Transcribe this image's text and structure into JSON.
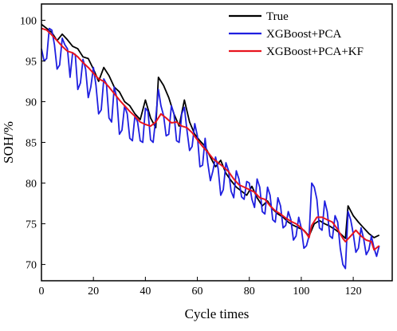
{
  "chart_data": {
    "type": "line",
    "title": "",
    "xlabel": "Cycle times",
    "ylabel": "SOH/%",
    "xlim": [
      0,
      135
    ],
    "ylim": [
      68,
      102
    ],
    "xticks": [
      0,
      20,
      40,
      60,
      80,
      100,
      120
    ],
    "yticks": [
      70,
      75,
      80,
      85,
      90,
      95,
      100
    ],
    "grid": false,
    "legend_position": "top-right",
    "series": [
      {
        "name": "True",
        "color": "#000000",
        "points": [
          [
            0,
            99.5
          ],
          [
            2,
            99.0
          ],
          [
            4,
            98.5
          ],
          [
            6,
            97.5
          ],
          [
            8,
            98.3
          ],
          [
            10,
            97.6
          ],
          [
            12,
            96.8
          ],
          [
            14,
            96.5
          ],
          [
            16,
            95.5
          ],
          [
            18,
            95.3
          ],
          [
            20,
            94.0
          ],
          [
            22,
            92.5
          ],
          [
            24,
            94.2
          ],
          [
            26,
            93.2
          ],
          [
            28,
            91.8
          ],
          [
            30,
            91.2
          ],
          [
            32,
            90.0
          ],
          [
            34,
            89.5
          ],
          [
            36,
            88.5
          ],
          [
            38,
            87.8
          ],
          [
            40,
            90.2
          ],
          [
            42,
            88.0
          ],
          [
            44,
            86.8
          ],
          [
            45,
            93.0
          ],
          [
            47,
            92.0
          ],
          [
            49,
            90.5
          ],
          [
            51,
            88.5
          ],
          [
            53,
            87.0
          ],
          [
            55,
            90.2
          ],
          [
            57,
            87.5
          ],
          [
            59,
            86.0
          ],
          [
            61,
            85.2
          ],
          [
            63,
            84.5
          ],
          [
            65,
            83.2
          ],
          [
            67,
            82.0
          ],
          [
            69,
            82.8
          ],
          [
            71,
            81.2
          ],
          [
            73,
            80.3
          ],
          [
            75,
            79.5
          ],
          [
            77,
            79.0
          ],
          [
            79,
            78.5
          ],
          [
            81,
            79.6
          ],
          [
            83,
            78.2
          ],
          [
            85,
            77.2
          ],
          [
            87,
            77.8
          ],
          [
            89,
            76.8
          ],
          [
            91,
            76.2
          ],
          [
            93,
            75.8
          ],
          [
            95,
            75.2
          ],
          [
            97,
            74.8
          ],
          [
            99,
            74.5
          ],
          [
            101,
            74.2
          ],
          [
            103,
            73.5
          ],
          [
            105,
            75.0
          ],
          [
            107,
            75.4
          ],
          [
            109,
            75.0
          ],
          [
            111,
            74.7
          ],
          [
            113,
            74.3
          ],
          [
            115,
            73.8
          ],
          [
            117,
            73.2
          ],
          [
            118,
            77.2
          ],
          [
            120,
            76.0
          ],
          [
            122,
            75.2
          ],
          [
            124,
            74.5
          ],
          [
            126,
            73.8
          ],
          [
            128,
            73.3
          ],
          [
            130,
            73.6
          ]
        ]
      },
      {
        "name": "XGBoost+PCA",
        "color": "#1f1fe0",
        "points": [
          [
            0,
            96.5
          ],
          [
            1,
            95.0
          ],
          [
            2,
            95.3
          ],
          [
            3,
            99.0
          ],
          [
            4,
            98.8
          ],
          [
            5,
            97.0
          ],
          [
            6,
            94.0
          ],
          [
            7,
            94.5
          ],
          [
            8,
            97.8
          ],
          [
            9,
            97.0
          ],
          [
            10,
            96.5
          ],
          [
            11,
            93.0
          ],
          [
            12,
            96.0
          ],
          [
            13,
            95.8
          ],
          [
            14,
            91.5
          ],
          [
            15,
            92.3
          ],
          [
            16,
            95.2
          ],
          [
            17,
            94.0
          ],
          [
            18,
            90.5
          ],
          [
            19,
            91.8
          ],
          [
            20,
            94.2
          ],
          [
            21,
            92.0
          ],
          [
            22,
            88.5
          ],
          [
            23,
            89.0
          ],
          [
            24,
            92.8
          ],
          [
            25,
            92.2
          ],
          [
            26,
            88.0
          ],
          [
            27,
            87.5
          ],
          [
            28,
            91.8
          ],
          [
            29,
            90.5
          ],
          [
            30,
            86.0
          ],
          [
            31,
            86.5
          ],
          [
            32,
            89.5
          ],
          [
            33,
            88.5
          ],
          [
            34,
            85.5
          ],
          [
            35,
            85.2
          ],
          [
            36,
            88.3
          ],
          [
            37,
            87.5
          ],
          [
            38,
            85.2
          ],
          [
            39,
            85.0
          ],
          [
            40,
            89.2
          ],
          [
            41,
            88.8
          ],
          [
            42,
            85.3
          ],
          [
            43,
            85.0
          ],
          [
            44,
            88.0
          ],
          [
            45,
            91.5
          ],
          [
            46,
            89.5
          ],
          [
            47,
            88.3
          ],
          [
            48,
            85.8
          ],
          [
            49,
            86.0
          ],
          [
            50,
            89.5
          ],
          [
            51,
            88.5
          ],
          [
            52,
            85.2
          ],
          [
            53,
            85.0
          ],
          [
            54,
            88.5
          ],
          [
            55,
            89.3
          ],
          [
            56,
            86.5
          ],
          [
            57,
            84.0
          ],
          [
            58,
            84.5
          ],
          [
            59,
            87.3
          ],
          [
            60,
            85.8
          ],
          [
            61,
            82.0
          ],
          [
            62,
            82.2
          ],
          [
            63,
            85.5
          ],
          [
            64,
            82.5
          ],
          [
            65,
            80.3
          ],
          [
            66,
            81.5
          ],
          [
            67,
            83.2
          ],
          [
            68,
            81.8
          ],
          [
            69,
            78.5
          ],
          [
            70,
            79.2
          ],
          [
            71,
            82.5
          ],
          [
            72,
            81.5
          ],
          [
            73,
            79.0
          ],
          [
            74,
            78.2
          ],
          [
            75,
            81.5
          ],
          [
            76,
            80.5
          ],
          [
            77,
            78.3
          ],
          [
            78,
            78.0
          ],
          [
            79,
            80.2
          ],
          [
            80,
            80.0
          ],
          [
            81,
            78.0
          ],
          [
            82,
            77.0
          ],
          [
            83,
            80.5
          ],
          [
            84,
            79.5
          ],
          [
            85,
            76.5
          ],
          [
            86,
            76.2
          ],
          [
            87,
            79.5
          ],
          [
            88,
            78.5
          ],
          [
            89,
            75.5
          ],
          [
            90,
            75.2
          ],
          [
            91,
            78.2
          ],
          [
            92,
            77.2
          ],
          [
            93,
            74.5
          ],
          [
            94,
            74.8
          ],
          [
            95,
            76.5
          ],
          [
            96,
            75.5
          ],
          [
            97,
            73.0
          ],
          [
            98,
            73.5
          ],
          [
            99,
            75.8
          ],
          [
            100,
            74.5
          ],
          [
            101,
            72.0
          ],
          [
            102,
            72.3
          ],
          [
            103,
            73.5
          ],
          [
            104,
            80.0
          ],
          [
            105,
            79.5
          ],
          [
            106,
            78.0
          ],
          [
            107,
            74.5
          ],
          [
            108,
            74.2
          ],
          [
            109,
            77.8
          ],
          [
            110,
            76.5
          ],
          [
            111,
            73.5
          ],
          [
            112,
            73.2
          ],
          [
            113,
            76.0
          ],
          [
            114,
            75.2
          ],
          [
            115,
            72.0
          ],
          [
            116,
            70.0
          ],
          [
            117,
            69.5
          ],
          [
            118,
            76.5
          ],
          [
            119,
            75.5
          ],
          [
            120,
            73.8
          ],
          [
            121,
            71.5
          ],
          [
            122,
            72.0
          ],
          [
            123,
            74.5
          ],
          [
            124,
            73.2
          ],
          [
            125,
            71.2
          ],
          [
            126,
            71.8
          ],
          [
            127,
            73.5
          ],
          [
            128,
            72.0
          ],
          [
            129,
            71.0
          ],
          [
            130,
            72.3
          ]
        ]
      },
      {
        "name": "XGBoost+PCA+KF",
        "color": "#e8141e",
        "points": [
          [
            0,
            99.0
          ],
          [
            2,
            98.8
          ],
          [
            4,
            98.2
          ],
          [
            6,
            97.5
          ],
          [
            8,
            96.8
          ],
          [
            10,
            96.2
          ],
          [
            12,
            96.0
          ],
          [
            14,
            95.5
          ],
          [
            16,
            94.8
          ],
          [
            18,
            94.2
          ],
          [
            20,
            93.5
          ],
          [
            22,
            92.8
          ],
          [
            24,
            92.5
          ],
          [
            26,
            91.8
          ],
          [
            28,
            91.0
          ],
          [
            30,
            90.2
          ],
          [
            32,
            89.5
          ],
          [
            34,
            88.8
          ],
          [
            36,
            88.2
          ],
          [
            38,
            87.5
          ],
          [
            40,
            87.2
          ],
          [
            42,
            87.0
          ],
          [
            44,
            87.5
          ],
          [
            46,
            88.5
          ],
          [
            48,
            88.0
          ],
          [
            50,
            87.4
          ],
          [
            52,
            87.5
          ],
          [
            54,
            87.0
          ],
          [
            56,
            86.8
          ],
          [
            58,
            86.2
          ],
          [
            60,
            85.3
          ],
          [
            62,
            84.5
          ],
          [
            64,
            83.8
          ],
          [
            66,
            83.0
          ],
          [
            68,
            82.5
          ],
          [
            70,
            82.0
          ],
          [
            72,
            81.4
          ],
          [
            74,
            80.5
          ],
          [
            76,
            79.8
          ],
          [
            78,
            79.5
          ],
          [
            80,
            79.2
          ],
          [
            82,
            78.9
          ],
          [
            84,
            78.2
          ],
          [
            86,
            78.0
          ],
          [
            88,
            77.2
          ],
          [
            90,
            76.6
          ],
          [
            92,
            76.2
          ],
          [
            94,
            75.7
          ],
          [
            96,
            75.3
          ],
          [
            98,
            75.0
          ],
          [
            100,
            74.5
          ],
          [
            102,
            73.8
          ],
          [
            103,
            73.3
          ],
          [
            104,
            74.8
          ],
          [
            106,
            75.8
          ],
          [
            108,
            75.8
          ],
          [
            110,
            75.5
          ],
          [
            112,
            75.2
          ],
          [
            114,
            74.3
          ],
          [
            116,
            73.2
          ],
          [
            117,
            72.8
          ],
          [
            119,
            73.5
          ],
          [
            121,
            74.2
          ],
          [
            123,
            73.5
          ],
          [
            125,
            73.0
          ],
          [
            127,
            72.8
          ],
          [
            128,
            71.8
          ],
          [
            130,
            72.3
          ]
        ]
      }
    ]
  }
}
